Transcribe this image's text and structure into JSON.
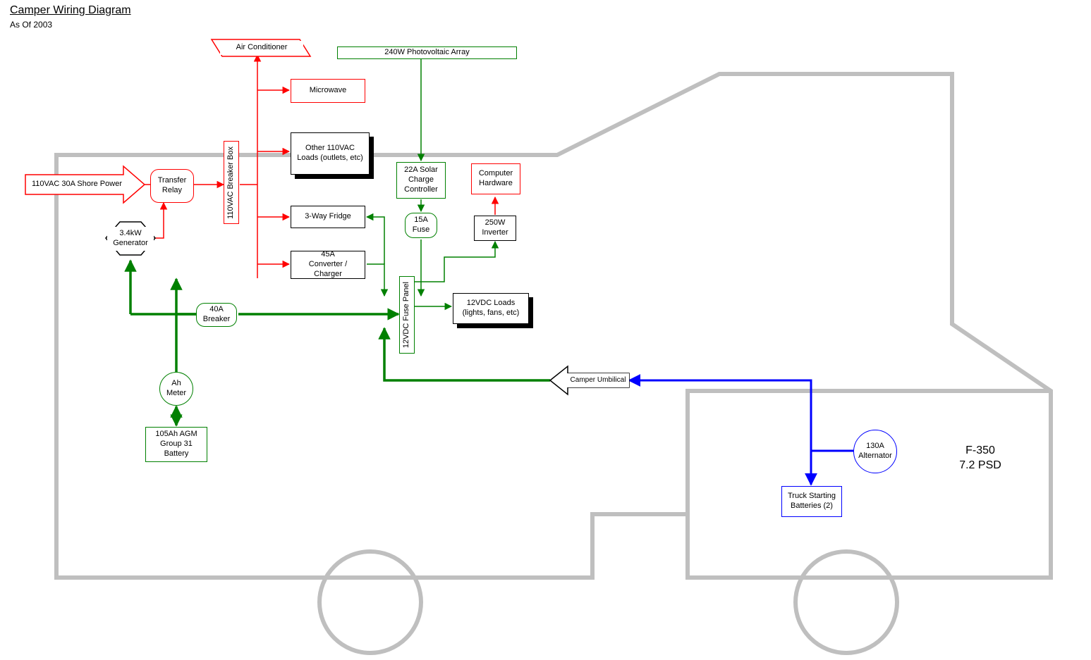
{
  "header": {
    "title": "Camper Wiring Diagram",
    "subtitle": "As Of 2003"
  },
  "colors": {
    "ac": "#ff0000",
    "dc": "#008000",
    "dc_heavy": "#008000",
    "truck": "#0000ff",
    "neutral": "#000000",
    "outline": "#bfbfbf",
    "bg": "#ffffff"
  },
  "stroke_widths": {
    "outline": 6,
    "thin": 1.5,
    "heavy": 3.5
  },
  "truck": {
    "label1": "F-350",
    "label2": "7.2 PSD"
  },
  "nodes": {
    "shore_power": {
      "label": "110VAC 30A Shore Power",
      "color": "ac"
    },
    "transfer_relay": {
      "label": "Transfer\nRelay",
      "color": "ac"
    },
    "breaker_box": {
      "label": "110VAC Breaker Box",
      "color": "ac",
      "vertical": true
    },
    "air_cond": {
      "label": "Air Conditioner",
      "color": "ac"
    },
    "microwave": {
      "label": "Microwave",
      "color": "ac"
    },
    "other_ac": {
      "label": "Other 110VAC\nLoads (outlets, etc)",
      "color": "neutral",
      "shadow": true
    },
    "comp_hw": {
      "label": "Computer\nHardware",
      "color": "ac"
    },
    "fridge": {
      "label": "3-Way Fridge",
      "color": "neutral"
    },
    "converter": {
      "label": "45A\nConverter / Charger",
      "color": "neutral"
    },
    "generator": {
      "label": "3.4kW\nGenerator",
      "color": "neutral"
    },
    "breaker40": {
      "label": "40A\nBreaker",
      "color": "dc"
    },
    "ah_meter": {
      "label": "Ah\nMeter",
      "color": "dc"
    },
    "battery": {
      "label": "105Ah AGM\nGroup 31\nBattery",
      "color": "dc"
    },
    "pv_array": {
      "label": "240W Photovoltaic Array",
      "color": "dc"
    },
    "solar_ctrl": {
      "label": "22A Solar\nCharge\nController",
      "color": "dc"
    },
    "fuse15": {
      "label": "15A\nFuse",
      "color": "dc"
    },
    "fuse_panel": {
      "label": "12VDC Fuse Panel",
      "color": "dc",
      "vertical": true
    },
    "dc_loads": {
      "label": "12VDC Loads\n(lights, fans, etc)",
      "color": "neutral",
      "shadow": true
    },
    "inverter": {
      "label": "250W\nInverter",
      "color": "neutral"
    },
    "umbilical": {
      "label": "Camper Umbilical",
      "color": "neutral"
    },
    "alternator": {
      "label": "130A\nAlternator",
      "color": "truck"
    },
    "truck_batt": {
      "label": "Truck Starting\nBatteries (2)",
      "color": "truck"
    }
  }
}
